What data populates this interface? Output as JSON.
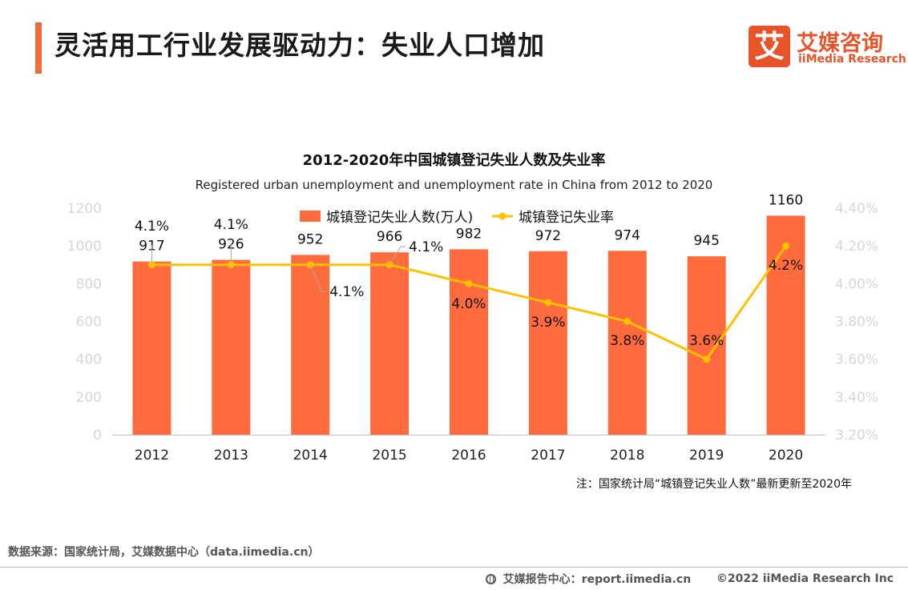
{
  "header": {
    "title": "灵活用工行业发展驱动力：失业人口增加",
    "accent_color": "#f26b3a"
  },
  "logo": {
    "mark_char": "艾",
    "name_cn": "艾媒咨询",
    "name_en": "iiMedia Research",
    "color": "#e8542a"
  },
  "chart_data": {
    "type": "bar",
    "title": "2012-2020年中国城镇登记失业人数及失业率",
    "subtitle": "Registered urban unemployment and unemployment rate in China from 2012 to 2020",
    "categories": [
      "2012",
      "2013",
      "2014",
      "2015",
      "2016",
      "2017",
      "2018",
      "2019",
      "2020"
    ],
    "series": [
      {
        "name": "城镇登记失业人数(万人)",
        "type": "bar",
        "axis": "left",
        "values": [
          917,
          926,
          952,
          966,
          982,
          972,
          974,
          945,
          1160
        ],
        "labels": [
          "917",
          "926",
          "952",
          "966",
          "982",
          "972",
          "974",
          "945",
          "1160"
        ],
        "color": "#ff6b3d"
      },
      {
        "name": "城镇登记失业率",
        "type": "line",
        "axis": "right",
        "values": [
          4.1,
          4.1,
          4.1,
          4.1,
          4.0,
          3.9,
          3.8,
          3.6,
          4.2
        ],
        "labels": [
          "4.1%",
          "4.1%",
          "4.1%",
          "4.1%",
          "4.0%",
          "3.9%",
          "3.8%",
          "3.6%",
          "4.2%"
        ],
        "color": "#ffc000"
      }
    ],
    "y_left": {
      "min": 0,
      "max": 1200,
      "ticks": [
        0,
        200,
        400,
        600,
        800,
        1000,
        1200
      ],
      "tick_labels": [
        "0",
        "200",
        "400",
        "600",
        "800",
        "1000",
        "1200"
      ]
    },
    "y_right": {
      "min": 3.2,
      "max": 4.4,
      "ticks": [
        3.2,
        3.4,
        3.6,
        3.8,
        4.0,
        4.2,
        4.4
      ],
      "tick_labels": [
        "3.20%",
        "3.40%",
        "3.60%",
        "3.80%",
        "4.00%",
        "4.20%",
        "4.40%"
      ]
    },
    "grid": false,
    "legend_position": "top-center",
    "note": "注：国家统计局“城镇登记失业人数”最新更新至2020年"
  },
  "source": "数据来源：国家统计局，艾媒数据中心（data.iimedia.cn）",
  "footer": {
    "icon": "globe-icon",
    "report_center": "艾媒报告中心：report.iimedia.cn",
    "copyright": "©2022  iiMedia Research  Inc"
  }
}
